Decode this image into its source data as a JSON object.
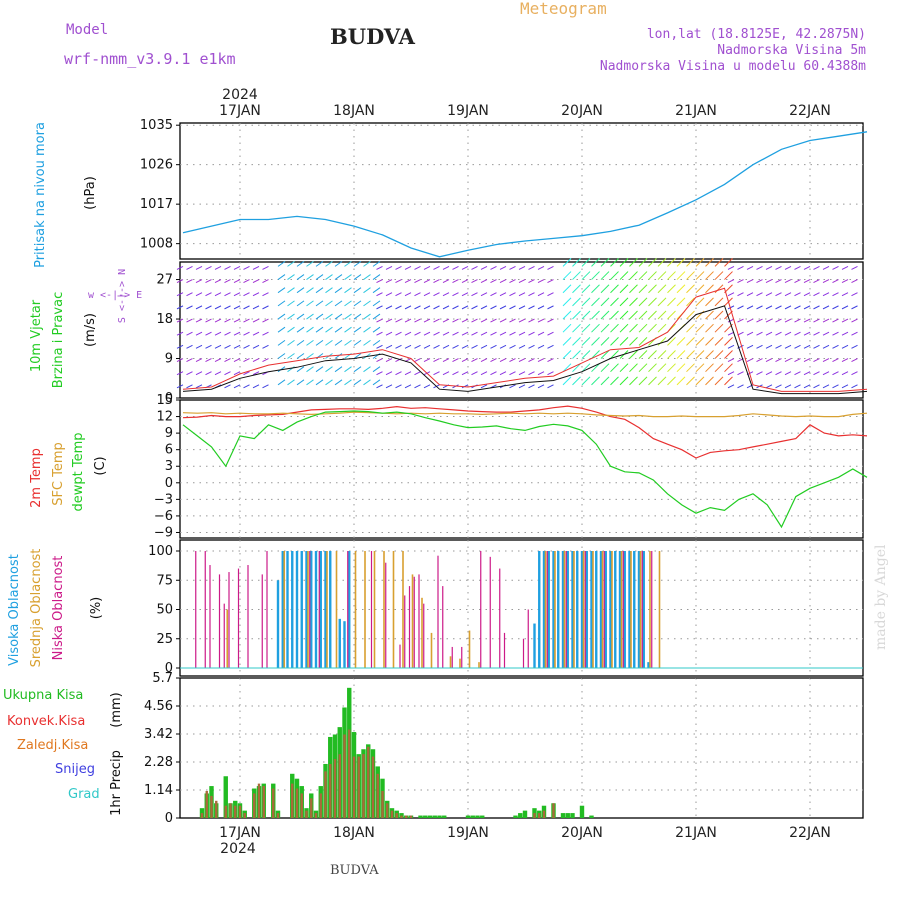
{
  "header": {
    "model_label": "Model",
    "model_name": "wrf-nmm_v3.9.1 e1km",
    "station": "BUDVA",
    "meteogram": "Meteogram",
    "lonlat": "lon,lat (18.8125E, 42.2875N)",
    "elevation": "Nadmorska Visina 5m",
    "model_elevation": "Nadmorska Visina u modelu 60.4388m",
    "credit": "made by Angel",
    "footer_station": "BUDVA"
  },
  "colors": {
    "pressure": "#1fa0e0",
    "temp2m": "#e83030",
    "sfc": "#d8a030",
    "dewpt": "#22cc22",
    "high_cloud": "#1fa0e0",
    "mid_cloud": "#d8a030",
    "low_cloud": "#cc1a88",
    "total_precip": "#22bb22",
    "conv_precip": "#e83030",
    "frozen_precip": "#e07820",
    "snow": "#4040e0",
    "graupel": "#30c8c8",
    "title_purple": "#a050d0",
    "meteogram_orange": "#e8b060"
  },
  "chart_data": [
    {
      "type": "line",
      "panel": "pressure",
      "ylabel": "Pritisak na nivou mora",
      "unit": "(hPa)",
      "ylim": [
        1004.5,
        1035.5
      ],
      "yticks": [
        1008,
        1017,
        1026,
        1035
      ],
      "x_unit": "hours from 2024-01-16 12:00",
      "x_top_labels": [
        "17JAN",
        "18JAN",
        "19JAN",
        "20JAN",
        "21JAN",
        "22JAN"
      ],
      "x_top_year": "2024",
      "x": [
        0,
        6,
        12,
        18,
        24,
        30,
        36,
        42,
        48,
        54,
        60,
        66,
        72,
        78,
        84,
        90,
        96,
        102,
        108,
        114,
        120,
        126,
        132,
        138,
        144
      ],
      "values": [
        1010.5,
        1012,
        1013.5,
        1013.5,
        1014.2,
        1013.5,
        1012,
        1010,
        1007,
        1005,
        1006.5,
        1007.8,
        1008.6,
        1009.2,
        1009.8,
        1010.8,
        1012.2,
        1015,
        1018,
        1021.5,
        1026,
        1029.5,
        1031.5,
        1032.5,
        1033.5
      ],
      "grid": true
    },
    {
      "type": "line",
      "panel": "wind",
      "ylabel": "10m Vjetar",
      "ylabel2": "Brzina i Pravac",
      "unit": "(m/s)",
      "direction_legend": "w <-|-> E",
      "direction_legend_ns": "S <-|-> N",
      "ylim": [
        0,
        31
      ],
      "yticks": [
        0,
        9,
        18,
        27
      ],
      "x": [
        0,
        6,
        12,
        18,
        24,
        30,
        36,
        42,
        48,
        54,
        60,
        66,
        72,
        78,
        84,
        90,
        96,
        102,
        108,
        114,
        120,
        126,
        132,
        138,
        144
      ],
      "series": [
        {
          "values": [
            1.5,
            2,
            4.5,
            6,
            7,
            8.5,
            9,
            10,
            8,
            2,
            1.5,
            2.5,
            3.5,
            4,
            6,
            9,
            11,
            13,
            19,
            21,
            2,
            1,
            1,
            1,
            1.5
          ]
        },
        {
          "values": [
            2,
            2.5,
            5.5,
            7.5,
            8.5,
            9.5,
            10,
            11,
            9,
            3,
            2.5,
            3.5,
            4.5,
            5,
            8,
            11,
            11.5,
            15,
            23,
            25,
            3,
            1.5,
            1.5,
            1.5,
            2
          ]
        }
      ],
      "grid": true
    },
    {
      "type": "line",
      "panel": "temperature",
      "ylabel_2m": "2m Temp",
      "ylabel_sfc": "SFC Temp",
      "ylabel_dew": "dewpt Temp",
      "unit": "(C)",
      "ylim": [
        -10,
        15
      ],
      "yticks": [
        -9,
        -6,
        -3,
        0,
        3,
        6,
        9,
        12,
        15
      ],
      "x": [
        0,
        3,
        6,
        9,
        12,
        15,
        18,
        21,
        24,
        27,
        30,
        33,
        36,
        39,
        42,
        45,
        48,
        51,
        54,
        57,
        60,
        63,
        66,
        69,
        72,
        75,
        78,
        81,
        84,
        87,
        90,
        93,
        96,
        99,
        102,
        105,
        108,
        111,
        114,
        117,
        120,
        123,
        126,
        129,
        132,
        135,
        138,
        141,
        144
      ],
      "series": [
        {
          "values": [
            11.8,
            11.9,
            12.2,
            12,
            12,
            12.2,
            12.3,
            12.4,
            12.8,
            13.2,
            13.3,
            13.4,
            13.4,
            13.3,
            13.5,
            13.8,
            13.5,
            13.6,
            13.4,
            13.2,
            13.0,
            12.9,
            12.8,
            12.8,
            13.0,
            13.2,
            13.6,
            13.9,
            13.5,
            12.8,
            12.0,
            11.5,
            10.0,
            8.0,
            7.0,
            6.0,
            4.5,
            5.5,
            5.8,
            6.0,
            6.5,
            7.0,
            7.5,
            8.0,
            10.5,
            9.0,
            8.5,
            8.7,
            8.5
          ]
        },
        {
          "values": [
            12.7,
            12.6,
            12.7,
            12.5,
            12.6,
            12.5,
            12.5,
            12.6,
            12.5,
            12.4,
            12.5,
            12.6,
            12.8,
            12.7,
            12.6,
            12.5,
            12.6,
            12.5,
            12.6,
            12.5,
            12.5,
            12.4,
            12.5,
            12.6,
            12.5,
            12.6,
            12.5,
            12.6,
            12.5,
            12.3,
            12.2,
            12.1,
            12.2,
            12.0,
            12.0,
            12.1,
            12.0,
            12.0,
            12.0,
            12.2,
            12.5,
            12.3,
            12.1,
            12.0,
            12.1,
            12.0,
            12.0,
            12.4,
            12.6
          ]
        },
        {
          "values": [
            10.5,
            8.5,
            6.5,
            3.0,
            8.5,
            8.0,
            10.5,
            9.5,
            11.0,
            12.0,
            12.8,
            12.9,
            13.0,
            12.9,
            12.6,
            12.8,
            12.5,
            11.8,
            11.2,
            10.5,
            10.0,
            10.1,
            10.3,
            9.8,
            9.5,
            10.2,
            10.6,
            10.3,
            9.5,
            7.0,
            3.0,
            2.0,
            1.8,
            0.5,
            -2.0,
            -4.0,
            -5.5,
            -4.5,
            -5.0,
            -3.0,
            -2.0,
            -4.0,
            -8.0,
            -2.5,
            -1.0,
            0.0,
            1.0,
            2.5,
            1.0
          ]
        }
      ],
      "grid": true
    },
    {
      "type": "bar",
      "panel": "clouds",
      "ylabel_high": "Visoka Oblacnost",
      "ylabel_mid": "Srednja Oblacnost",
      "ylabel_low": "Niska Oblacnost",
      "unit": "(%)",
      "ylim": [
        0,
        100
      ],
      "yticks": [
        0,
        25,
        50,
        75,
        100
      ],
      "series": [
        {
          "name": "high",
          "x": [
            20,
            21,
            22,
            23,
            24,
            25,
            26,
            27,
            28,
            29,
            30,
            31,
            33,
            34,
            35,
            74,
            75,
            76,
            77,
            78,
            79,
            80,
            81,
            82,
            83,
            84,
            85,
            86,
            87,
            88,
            89,
            90,
            91,
            92,
            93,
            94,
            95,
            96,
            97,
            98
          ],
          "values": [
            75,
            100,
            100,
            100,
            100,
            100,
            100,
            100,
            100,
            100,
            100,
            100,
            42,
            40,
            100,
            38,
            100,
            100,
            100,
            100,
            100,
            100,
            100,
            100,
            100,
            100,
            100,
            100,
            100,
            100,
            100,
            100,
            100,
            100,
            100,
            100,
            100,
            100,
            100,
            5
          ]
        },
        {
          "name": "mid",
          "x": [
            9,
            21,
            26,
            30,
            32,
            36,
            38,
            40,
            42,
            44,
            46,
            48,
            50,
            52,
            56,
            58,
            60,
            62,
            76,
            78,
            80,
            82,
            84,
            86,
            88,
            90,
            92,
            94,
            96,
            98,
            100
          ],
          "values": [
            50,
            100,
            100,
            100,
            100,
            100,
            100,
            100,
            100,
            100,
            100,
            80,
            60,
            30,
            10,
            8,
            32,
            5,
            100,
            100,
            100,
            100,
            100,
            100,
            100,
            100,
            100,
            100,
            100,
            100,
            100
          ]
        },
        {
          "name": "low",
          "x": [
            3,
            5,
            6,
            8,
            9,
            10,
            12,
            14,
            17,
            18,
            27,
            29,
            35,
            40,
            43,
            46,
            47,
            48,
            49,
            50,
            51,
            54,
            55,
            57,
            59,
            63,
            65,
            67,
            68,
            72,
            73,
            77,
            81,
            85,
            89,
            93,
            97,
            99
          ],
          "values": [
            100,
            100,
            88,
            80,
            55,
            82,
            85,
            88,
            80,
            100,
            100,
            100,
            100,
            100,
            90,
            20,
            62,
            70,
            78,
            80,
            55,
            96,
            70,
            18,
            18,
            100,
            95,
            85,
            30,
            25,
            50,
            100,
            100,
            100,
            100,
            100,
            100,
            100
          ]
        }
      ],
      "grid": true
    },
    {
      "type": "bar",
      "panel": "precipitation",
      "ylabel": "1hr Precip",
      "unit": "(mm)",
      "legend": [
        "Ukupna Kisa",
        "Konvek.Kisa",
        "Zaledj.Kisa",
        "Snijeg",
        "Grad"
      ],
      "ylim": [
        0,
        5.7
      ],
      "yticks": [
        0,
        1.14,
        2.28,
        3.42,
        4.56,
        5.7
      ],
      "x_bottom_labels": [
        "17JAN",
        "18JAN",
        "19JAN",
        "20JAN",
        "21JAN",
        "22JAN"
      ],
      "x_bottom_year": "2024",
      "series": [
        {
          "name": "Ukupna Kisa",
          "x": [
            4,
            5,
            6,
            7,
            9,
            10,
            11,
            12,
            13,
            15,
            16,
            17,
            19,
            20,
            23,
            24,
            25,
            26,
            27,
            28,
            29,
            30,
            31,
            32,
            33,
            34,
            35,
            36,
            37,
            38,
            39,
            40,
            41,
            42,
            43,
            44,
            45,
            46,
            47,
            48,
            50,
            51,
            52,
            53,
            54,
            55,
            60,
            61,
            62,
            63,
            70,
            71,
            72,
            74,
            75,
            76,
            78,
            80,
            81,
            82,
            84,
            86
          ],
          "values": [
            0.4,
            1.0,
            1.3,
            0.6,
            1.7,
            0.6,
            0.7,
            0.6,
            0.3,
            1.2,
            1.3,
            1.4,
            1.4,
            0.3,
            1.8,
            1.6,
            1.3,
            0.4,
            1.0,
            0.3,
            1.3,
            2.2,
            3.3,
            3.4,
            3.7,
            4.5,
            5.3,
            3.5,
            2.6,
            2.8,
            3.0,
            2.8,
            2.1,
            1.6,
            0.7,
            0.4,
            0.3,
            0.2,
            0.1,
            0.1,
            0.1,
            0.1,
            0.1,
            0.1,
            0.1,
            0.1,
            0.1,
            0.1,
            0.1,
            0.1,
            0.1,
            0.2,
            0.3,
            0.4,
            0.3,
            0.5,
            0.6,
            0.2,
            0.2,
            0.2,
            0.5,
            0.1
          ]
        },
        {
          "name": "Konvek.Kisa",
          "x": [
            4,
            5,
            6,
            7,
            9,
            10,
            11,
            12,
            13,
            15,
            16,
            17,
            19,
            20,
            23,
            24,
            25,
            26,
            27,
            28,
            29,
            30,
            31,
            32,
            33,
            34,
            35,
            36,
            37,
            38,
            39,
            40,
            41,
            42,
            43,
            44,
            45,
            46,
            47,
            48,
            74,
            75,
            76,
            78
          ],
          "values": [
            0.2,
            1.1,
            0.9,
            0.7,
            0.5,
            0.6,
            0.5,
            0.5,
            0.2,
            1.0,
            1.4,
            1.3,
            1.2,
            0.2,
            1.4,
            1.2,
            1.0,
            0.3,
            0.8,
            0.2,
            1.0,
            1.9,
            2.2,
            2.4,
            2.6,
            3.4,
            3.6,
            2.5,
            2.5,
            2.6,
            2.9,
            2.5,
            1.8,
            1.1,
            0.6,
            0.3,
            0.2,
            0.1,
            0.1,
            0.1,
            0.2,
            0.2,
            0.3,
            0.6
          ]
        }
      ],
      "grid": true
    }
  ]
}
